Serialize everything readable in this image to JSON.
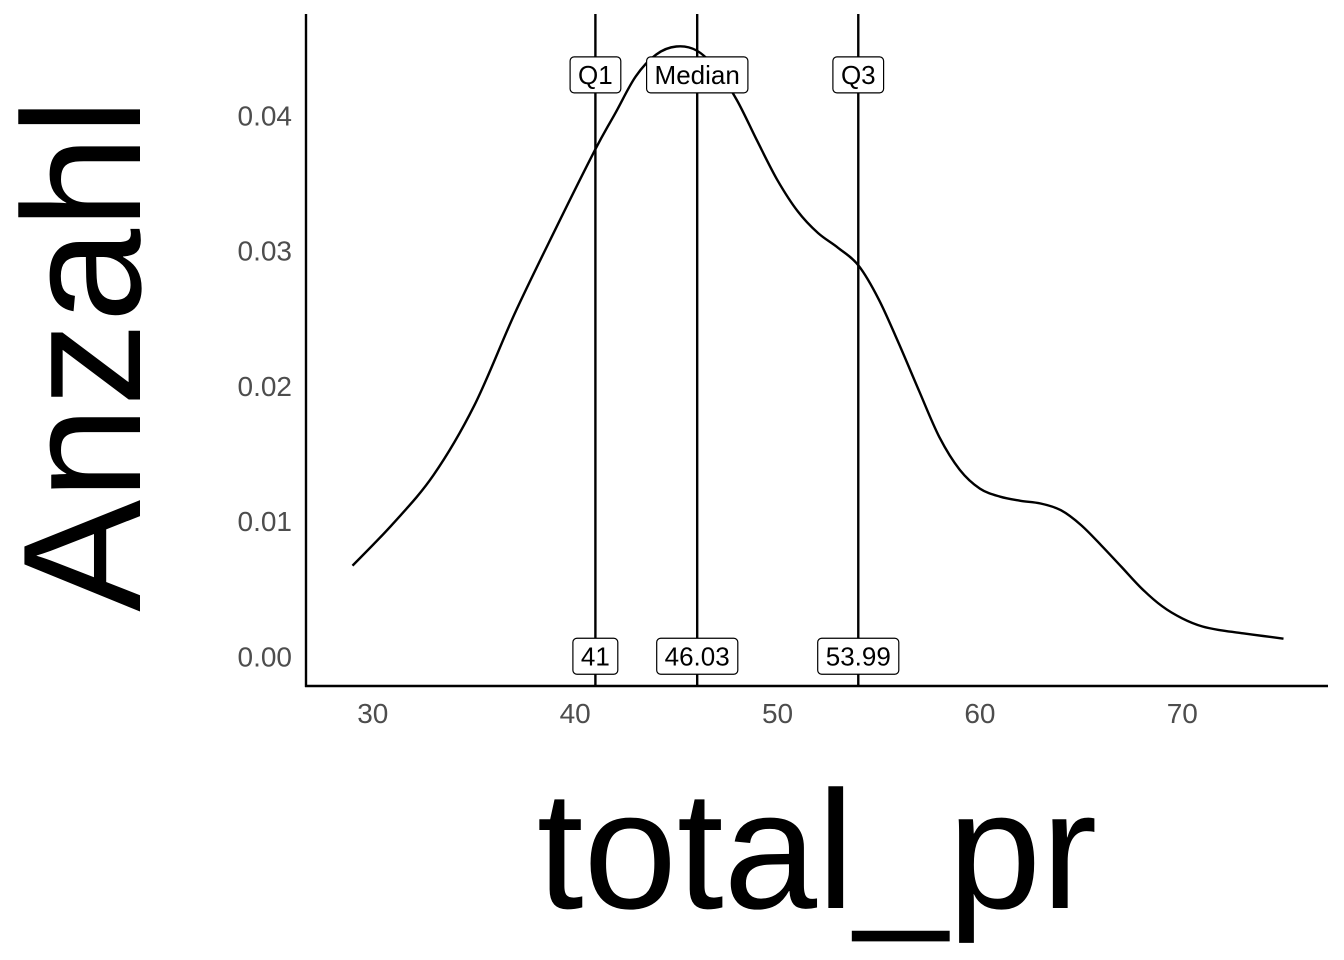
{
  "chart_data": {
    "type": "line",
    "title": "",
    "xlabel": "total_pr",
    "ylabel": "Anzahl",
    "xlim": [
      26.7,
      77.2
    ],
    "ylim": [
      -0.0022,
      0.0475
    ],
    "x_ticks": [
      30,
      40,
      50,
      60,
      70
    ],
    "x_tick_labels": [
      "30",
      "40",
      "50",
      "60",
      "70"
    ],
    "y_ticks": [
      0.0,
      0.01,
      0.02,
      0.03,
      0.04
    ],
    "y_tick_labels": [
      "0.00",
      "0.01",
      "0.02",
      "0.03",
      "0.04"
    ],
    "grid": false,
    "series": [
      {
        "x": [
          29,
          31,
          33,
          35,
          37,
          39,
          41,
          42,
          43,
          44,
          45,
          46,
          47,
          48,
          49,
          50,
          51,
          52,
          53,
          54,
          55,
          56,
          57,
          58,
          59,
          60,
          61,
          62,
          63,
          64,
          65,
          66,
          67,
          68,
          69,
          70,
          71,
          72,
          73,
          74,
          75
        ],
        "y": [
          0.0067,
          0.0098,
          0.0134,
          0.0185,
          0.0253,
          0.0315,
          0.0375,
          0.0402,
          0.0429,
          0.0445,
          0.0451,
          0.0448,
          0.0434,
          0.0411,
          0.0381,
          0.0352,
          0.0329,
          0.0313,
          0.0302,
          0.0289,
          0.0264,
          0.0231,
          0.0196,
          0.0162,
          0.0138,
          0.0124,
          0.0118,
          0.0115,
          0.0113,
          0.0108,
          0.0097,
          0.0082,
          0.0066,
          0.005,
          0.0037,
          0.0028,
          0.0022,
          0.0019,
          0.0017,
          0.0015,
          0.0013
        ],
        "color": "#000000"
      }
    ],
    "vlines": [
      {
        "x": 41,
        "label": "Q1",
        "value_label": "41"
      },
      {
        "x": 46.03,
        "label": "Median",
        "value_label": "46.03"
      },
      {
        "x": 53.99,
        "label": "Q3",
        "value_label": "53.99"
      }
    ],
    "label_y_top": 0.043,
    "label_y_bottom": 0.0
  }
}
